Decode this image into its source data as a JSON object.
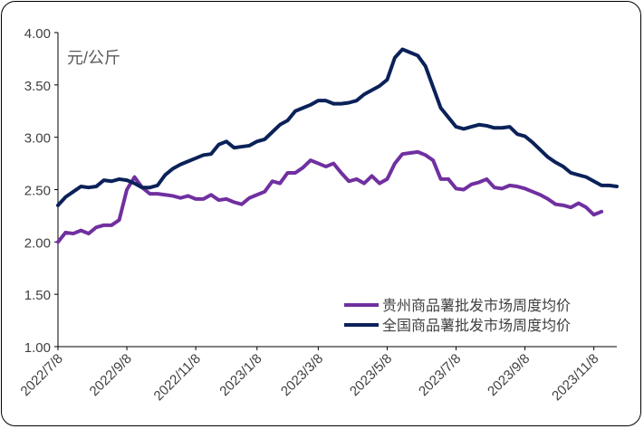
{
  "chart_data": {
    "type": "line",
    "title": "",
    "unit_label": "元/公斤",
    "xlabel": "",
    "ylabel": "",
    "ylim": [
      1.0,
      4.0
    ],
    "yticks": [
      "1.00",
      "1.50",
      "2.00",
      "2.50",
      "3.00",
      "3.50",
      "4.00"
    ],
    "ytick_values": [
      1.0,
      1.5,
      2.0,
      2.5,
      3.0,
      3.5,
      4.0
    ],
    "xtick_labels": [
      "2022/7/8",
      "2022/9/8",
      "2022/11/8",
      "2023/1/8",
      "2023/3/8",
      "2023/5/8",
      "2023/7/8",
      "2023/9/8",
      "2023/11/8"
    ],
    "xtick_week_index": [
      0,
      9,
      18,
      26,
      34,
      43,
      52,
      61,
      70
    ],
    "x_unit": "weeks (weekly data starting 2022/7/8)",
    "grid": false,
    "legend_position": "bottom-right",
    "series": [
      {
        "name": "贵州商品薯批发市场周度均价",
        "color": "#7030A0",
        "values": [
          2.0,
          2.09,
          2.08,
          2.11,
          2.08,
          2.14,
          2.16,
          2.16,
          2.21,
          2.5,
          2.62,
          2.52,
          2.46,
          2.46,
          2.45,
          2.44,
          2.42,
          2.44,
          2.41,
          2.41,
          2.45,
          2.4,
          2.41,
          2.38,
          2.36,
          2.42,
          2.45,
          2.48,
          2.58,
          2.56,
          2.66,
          2.66,
          2.71,
          2.78,
          2.75,
          2.72,
          2.75,
          2.66,
          2.58,
          2.6,
          2.56,
          2.63,
          2.56,
          2.6,
          2.75,
          2.84,
          2.85,
          2.86,
          2.83,
          2.78,
          2.6,
          2.6,
          2.51,
          2.5,
          2.55,
          2.57,
          2.6,
          2.52,
          2.51,
          2.54,
          2.53,
          2.51,
          2.48,
          2.45,
          2.41,
          2.36,
          2.35,
          2.33,
          2.37,
          2.33,
          2.26,
          2.29
        ]
      },
      {
        "name": "全国商品薯批发市场周度均价",
        "color": "#0B2159",
        "values": [
          2.35,
          2.43,
          2.48,
          2.53,
          2.52,
          2.53,
          2.59,
          2.58,
          2.6,
          2.59,
          2.56,
          2.52,
          2.52,
          2.54,
          2.64,
          2.7,
          2.74,
          2.77,
          2.8,
          2.83,
          2.84,
          2.93,
          2.96,
          2.9,
          2.91,
          2.92,
          2.96,
          2.98,
          3.05,
          3.12,
          3.16,
          3.25,
          3.28,
          3.31,
          3.35,
          3.35,
          3.32,
          3.32,
          3.33,
          3.35,
          3.41,
          3.45,
          3.49,
          3.55,
          3.76,
          3.84,
          3.81,
          3.78,
          3.68,
          3.48,
          3.28,
          3.19,
          3.1,
          3.08,
          3.1,
          3.12,
          3.11,
          3.09,
          3.09,
          3.1,
          3.03,
          3.01,
          2.95,
          2.88,
          2.81,
          2.76,
          2.72,
          2.66,
          2.64,
          2.62,
          2.58,
          2.54,
          2.54,
          2.53
        ]
      }
    ]
  }
}
